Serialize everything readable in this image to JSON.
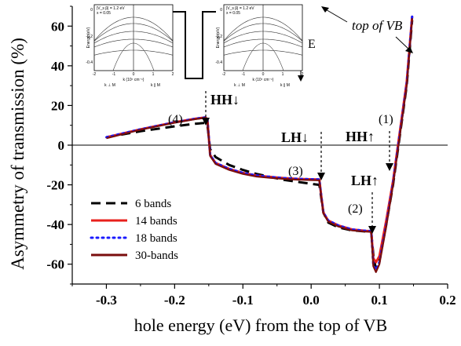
{
  "chart_data": {
    "type": "line",
    "xlabel": "hole energy (eV) from the top of VB",
    "ylabel": "Asymmetry of transmission (%)",
    "xlim": [
      -0.35,
      0.2
    ],
    "ylim": [
      -70,
      70
    ],
    "x_ticks": [
      -0.3,
      -0.2,
      -0.1,
      0.0,
      0.1,
      0.2
    ],
    "x_tick_labels": [
      "-0.3",
      "-0.2",
      "-0.1",
      "0.0",
      "0.1",
      "0.2"
    ],
    "y_ticks": [
      -60,
      -40,
      -20,
      0,
      20,
      40,
      60
    ],
    "y_tick_labels": [
      "-60",
      "-40",
      "-20",
      "0",
      "20",
      "40",
      "60"
    ],
    "grid": false,
    "legend_position": "lower-left",
    "series": [
      {
        "name": "6  bands",
        "color": "#000000",
        "style": "dashed",
        "x": [
          -0.3,
          -0.25,
          -0.2,
          -0.17,
          -0.155,
          -0.152,
          -0.148,
          -0.14,
          -0.12,
          -0.1,
          -0.08,
          -0.06,
          -0.04,
          -0.02,
          0.0,
          0.012,
          0.015,
          0.018,
          0.025,
          0.04,
          0.06,
          0.08,
          0.088,
          0.092,
          0.095,
          0.1,
          0.11,
          0.12,
          0.13,
          0.14,
          0.148
        ],
        "y": [
          4,
          7,
          9.5,
          10.8,
          11.2,
          10,
          -2,
          -6,
          -10,
          -12.5,
          -14.5,
          -16,
          -17.5,
          -18.5,
          -19.5,
          -20,
          -27,
          -34,
          -39,
          -41.5,
          -43,
          -43.5,
          -44,
          -58,
          -62,
          -58,
          -40,
          -20,
          5,
          30,
          63
        ]
      },
      {
        "name": "14 bands",
        "color": "#e8201c",
        "style": "solid",
        "x": [
          -0.3,
          -0.25,
          -0.2,
          -0.17,
          -0.155,
          -0.152,
          -0.148,
          -0.14,
          -0.12,
          -0.1,
          -0.08,
          -0.06,
          -0.04,
          -0.02,
          0.0,
          0.012,
          0.015,
          0.018,
          0.025,
          0.04,
          0.06,
          0.08,
          0.088,
          0.091,
          0.095,
          0.1,
          0.11,
          0.12,
          0.13,
          0.14,
          0.148
        ],
        "y": [
          4,
          8,
          11.5,
          13.3,
          14,
          13,
          -5,
          -9,
          -12,
          -14,
          -15.3,
          -16,
          -16.6,
          -17,
          -17.2,
          -17.3,
          -26,
          -34,
          -38,
          -40.5,
          -42.5,
          -43.2,
          -43.3,
          -57,
          -59,
          -56,
          -38,
          -18,
          7,
          32,
          65
        ]
      },
      {
        "name": "18 bands",
        "color": "#1a1aff",
        "style": "dotted",
        "x": [
          -0.3,
          -0.25,
          -0.2,
          -0.17,
          -0.155,
          -0.152,
          -0.148,
          -0.14,
          -0.12,
          -0.1,
          -0.08,
          -0.06,
          -0.04,
          -0.02,
          0.0,
          0.012,
          0.015,
          0.018,
          0.025,
          0.04,
          0.06,
          0.08,
          0.088,
          0.091,
          0.095,
          0.1,
          0.11,
          0.12,
          0.13,
          0.14,
          0.148
        ],
        "y": [
          4,
          8,
          11.5,
          13.3,
          14,
          13,
          -5,
          -9,
          -12,
          -14,
          -15.3,
          -16,
          -16.6,
          -17,
          -17.2,
          -17.3,
          -26,
          -34,
          -38,
          -40.5,
          -42.5,
          -43.2,
          -43.3,
          -60,
          -63,
          -59,
          -40,
          -19,
          6,
          31,
          65
        ]
      },
      {
        "name": "30-bands",
        "color": "#7a0d0d",
        "style": "solid",
        "x": [
          -0.3,
          -0.25,
          -0.2,
          -0.17,
          -0.155,
          -0.152,
          -0.148,
          -0.14,
          -0.12,
          -0.1,
          -0.08,
          -0.06,
          -0.04,
          -0.02,
          0.0,
          0.012,
          0.015,
          0.018,
          0.025,
          0.04,
          0.06,
          0.08,
          0.088,
          0.091,
          0.095,
          0.1,
          0.11,
          0.12,
          0.13,
          0.14,
          0.148
        ],
        "y": [
          3.5,
          7.8,
          11.3,
          13.1,
          13.8,
          12.5,
          -5.5,
          -9.5,
          -12.5,
          -14.5,
          -15.8,
          -16.5,
          -17,
          -17.4,
          -17.6,
          -17.7,
          -26.5,
          -34.5,
          -38.5,
          -41,
          -43,
          -43.6,
          -43.7,
          -61,
          -64,
          -60,
          -41,
          -20,
          5,
          30,
          64
        ]
      }
    ],
    "annotations": [
      {
        "text": "(4)",
        "kind": "label"
      },
      {
        "text": "HH↓",
        "kind": "arrow"
      },
      {
        "text": "(3)",
        "kind": "label"
      },
      {
        "text": "LH↓",
        "kind": "arrow"
      },
      {
        "text": "HH↑",
        "kind": "arrow"
      },
      {
        "text": "(1)",
        "kind": "label"
      },
      {
        "text": "LH↑",
        "kind": "arrow"
      },
      {
        "text": "(2)",
        "kind": "label"
      },
      {
        "text": "top of VB",
        "kind": "arrow"
      },
      {
        "text": "E",
        "kind": "arrow"
      }
    ]
  },
  "inset": {
    "left_panel": {
      "title_line1": "|V_s β| = 1.2 eV",
      "title_line2": "x = 0.05",
      "ylabel": "Energy (eV)",
      "xlabel": "k (10⁷ cm⁻¹)",
      "x_ticks": [
        "-2",
        "-1",
        "0",
        "1",
        "2"
      ],
      "y_ticks": [
        "0",
        "-0.2",
        "-0.4"
      ],
      "dir_left": "k ⊥ M",
      "dir_right": "k ∥ M"
    },
    "right_panel": {
      "title_line1": "|V_s β| = 1.2 eV",
      "title_line2": "x = 0.05",
      "ylabel": "Energy (eV)",
      "xlabel": "k (10⁷ cm⁻¹)",
      "x_ticks": [
        "-2",
        "-1",
        "0",
        "1",
        "2"
      ],
      "y_ticks": [
        "0",
        "-0.2",
        "-0.4"
      ],
      "dir_left": "k ⊥ M",
      "dir_right": "k ∥ M"
    }
  }
}
